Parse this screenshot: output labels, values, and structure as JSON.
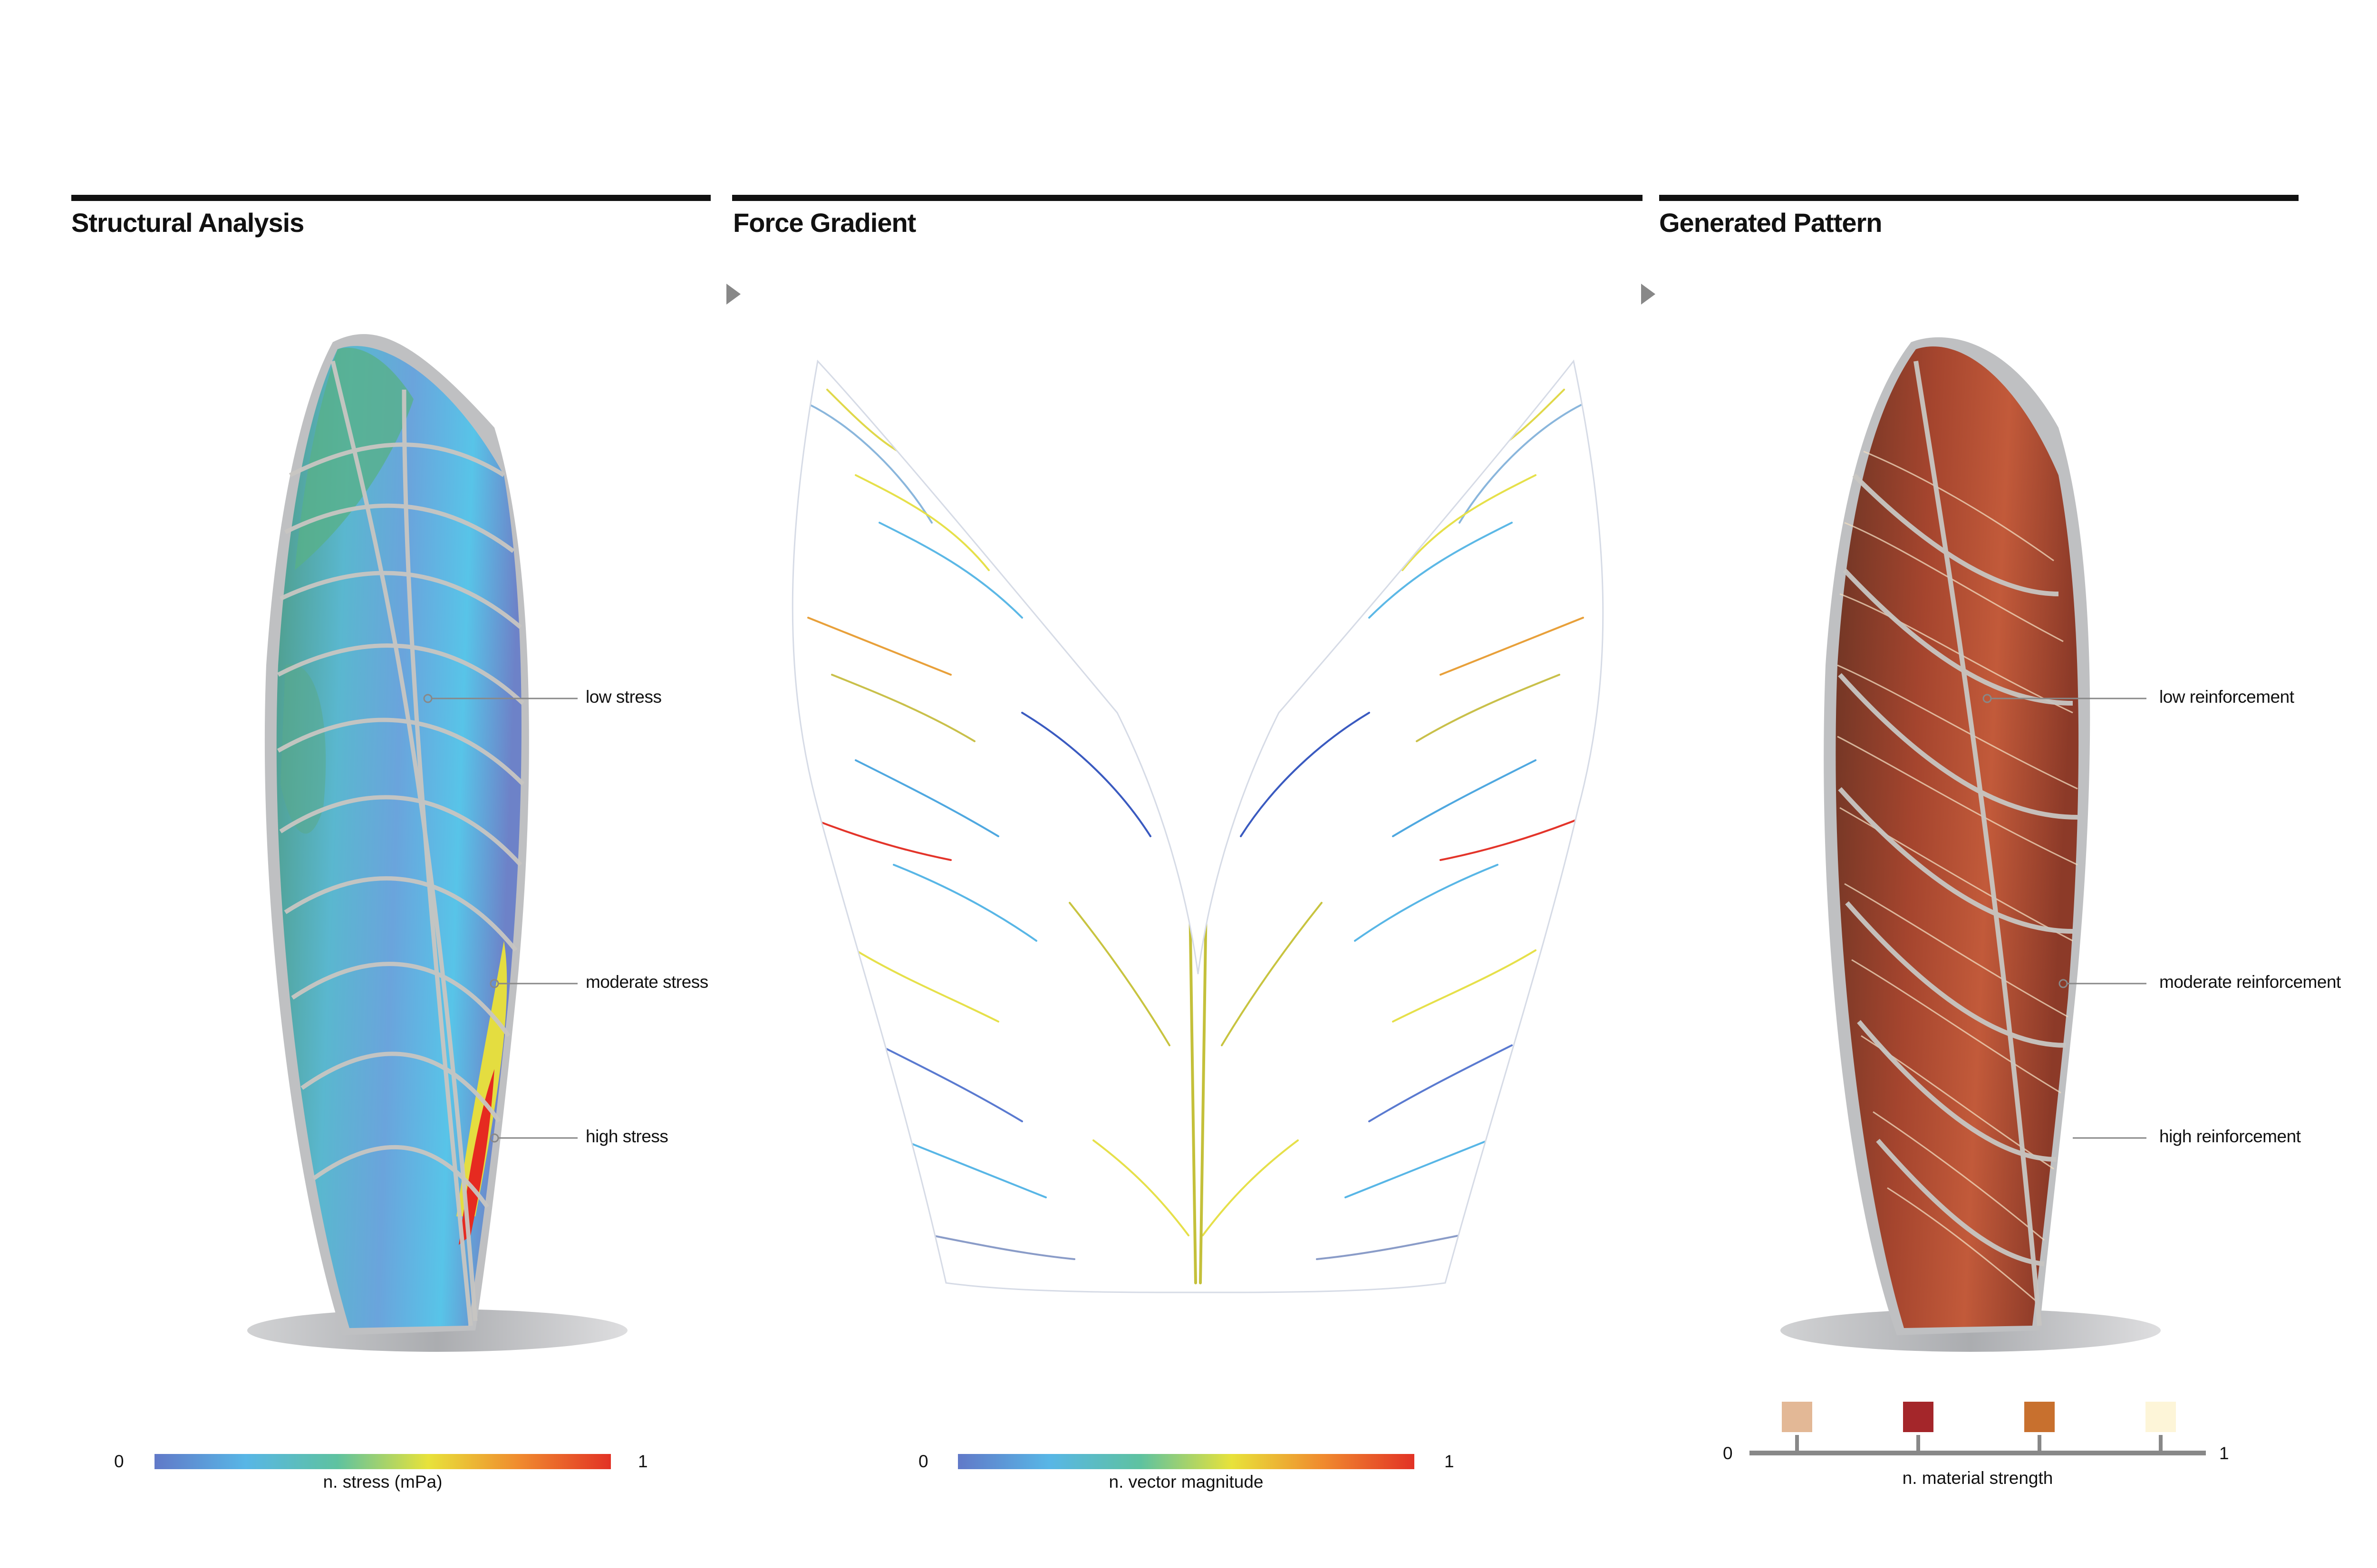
{
  "panels": [
    {
      "title": "Structural Analysis"
    },
    {
      "title": "Force Gradient"
    },
    {
      "title": "Generated Pattern"
    }
  ],
  "structural": {
    "callouts": [
      "low stress",
      "moderate stress",
      "high stress"
    ],
    "legend": {
      "min": "0",
      "max": "1",
      "caption": "n. stress (mPa)"
    }
  },
  "force": {
    "legend": {
      "min": "0",
      "max": "1",
      "caption": "n. vector magnitude"
    }
  },
  "pattern": {
    "callouts": [
      "low reinforcement",
      "moderate reinforcement",
      "high reinforcement"
    ],
    "legend": {
      "min": "0",
      "max": "1",
      "caption": "n. material strength"
    },
    "swatches": [
      "#e3b896",
      "#a4262a",
      "#c8702e",
      "#fdf5d8"
    ]
  },
  "colors": {
    "gradient": [
      "#6179c8",
      "#58b6e6",
      "#5ec2a0",
      "#e8e23a",
      "#f08a2e",
      "#e23225"
    ]
  }
}
